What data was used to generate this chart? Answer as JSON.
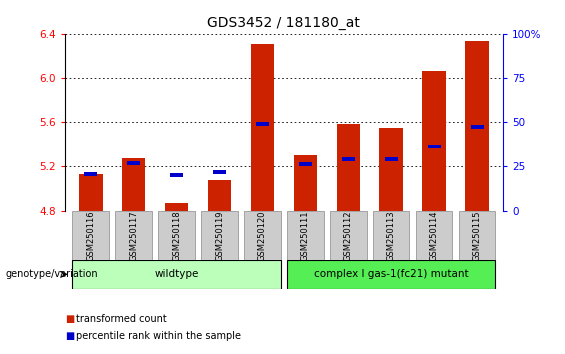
{
  "title": "GDS3452 / 181180_at",
  "samples": [
    "GSM250116",
    "GSM250117",
    "GSM250118",
    "GSM250119",
    "GSM250120",
    "GSM250111",
    "GSM250112",
    "GSM250113",
    "GSM250114",
    "GSM250115"
  ],
  "red_values": [
    5.13,
    5.28,
    4.87,
    5.08,
    6.31,
    5.3,
    5.58,
    5.55,
    6.06,
    6.33
  ],
  "blue_values": [
    5.13,
    5.23,
    5.12,
    5.15,
    5.58,
    5.22,
    5.27,
    5.27,
    5.38,
    5.56
  ],
  "ymin": 4.8,
  "ymax": 6.4,
  "yticks": [
    4.8,
    5.2,
    5.6,
    6.0,
    6.4
  ],
  "right_yticks": [
    0,
    25,
    50,
    75,
    100
  ],
  "right_ytick_labels": [
    "0",
    "25",
    "50",
    "75",
    "100%"
  ],
  "n_wildtype": 5,
  "wildtype_label": "wildtype",
  "mutant_label": "complex I gas-1(fc21) mutant",
  "genotype_label": "genotype/variation",
  "legend_red": "transformed count",
  "legend_blue": "percentile rank within the sample",
  "bar_color": "#cc2200",
  "dot_color": "#0000cc",
  "wildtype_bg": "#bbffbb",
  "mutant_bg": "#55ee55",
  "sample_bg": "#cccccc",
  "bar_width": 0.55,
  "title_fontsize": 10,
  "tick_fontsize": 7.5,
  "label_fontsize": 7.5
}
